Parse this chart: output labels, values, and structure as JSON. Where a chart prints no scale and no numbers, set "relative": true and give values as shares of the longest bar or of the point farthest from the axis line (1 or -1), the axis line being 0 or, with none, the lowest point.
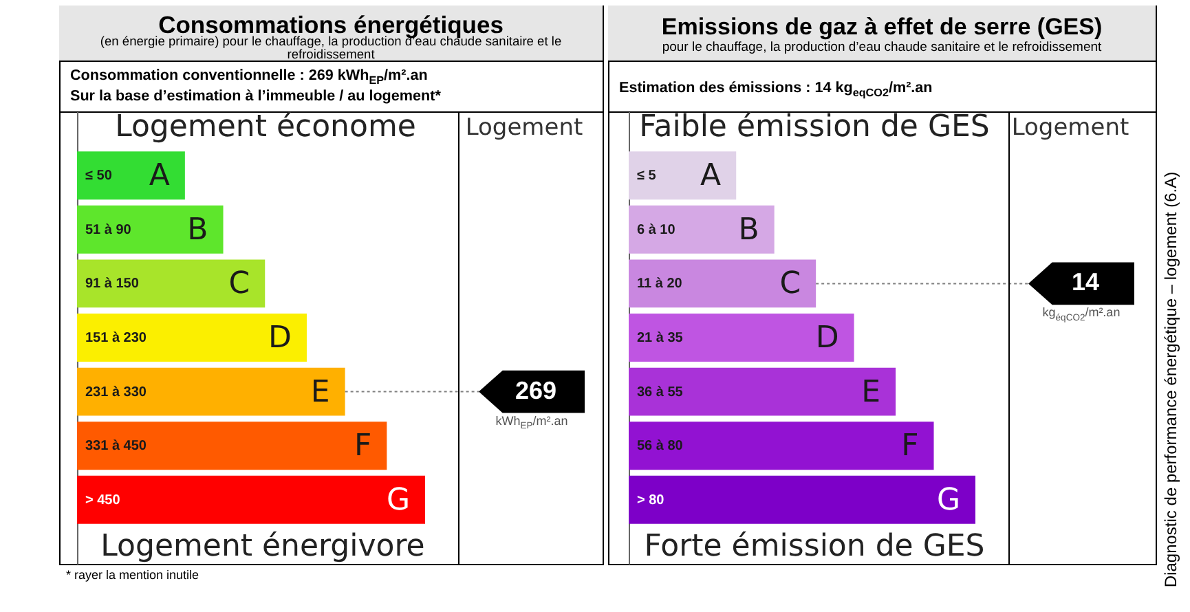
{
  "chart_data": [
    {
      "type": "bar",
      "orientation": "horizontal",
      "relative": true,
      "title": "Consommations énergétiques",
      "subtitle": "(en énergie primaire) pour le chauffage, la production d’eau chaude sanitaire et le refroidissement",
      "categories": [
        "≤ 50",
        "51 à 90",
        "91 à 150",
        "151 à 230",
        "231 à 330",
        "331 à 450",
        "> 450"
      ],
      "values": [
        0.31,
        0.42,
        0.54,
        0.66,
        0.77,
        0.89,
        1
      ],
      "colors": [
        "#33dd33",
        "#5ee62c",
        "#a8e42a",
        "#fbef00",
        "#ffb000",
        "#ff5a00",
        "#ff0000"
      ],
      "ref_lines": [
        {
          "axis": "y",
          "value": "231 à 330",
          "label": "269",
          "color": "#808080",
          "line_style": "dotted"
        }
      ],
      "annotations": [
        "Consommation conventionnelle : 269 kWh$_{EP}$/m².an",
        "Sur la base d’estimation à l’immeuble / au logement*",
        "Logement économe",
        "Logement",
        "Logement énergivore",
        {
          "text": "A",
          "x": 0.31,
          "y": "≤ 50"
        },
        {
          "text": "B",
          "x": 0.42,
          "y": "51 à 90"
        },
        {
          "text": "C",
          "x": 0.54,
          "y": "91 à 150"
        },
        {
          "text": "D",
          "x": 0.66,
          "y": "151 à 230"
        },
        {
          "text": "E",
          "x": 0.77,
          "y": "231 à 330"
        },
        {
          "text": "F",
          "x": 0.89,
          "y": "331 à 450"
        },
        {
          "text": "G",
          "x": 1,
          "y": "> 450"
        },
        "kWh$_{EP}$/m².an",
        "* rayer la mention inutile"
      ]
    },
    {
      "type": "bar",
      "orientation": "horizontal",
      "relative": true,
      "title": "Emissions de gaz à effet de serre (GES)",
      "subtitle": "pour le chauffage, la production d’eau chaude sanitaire et le refroidissement",
      "categories": [
        "≤ 5",
        "6 à 10",
        "11 à 20",
        "21 à 35",
        "36 à 55",
        "56 à 80",
        "> 80"
      ],
      "values": [
        0.31,
        0.42,
        0.54,
        0.65,
        0.77,
        0.88,
        1
      ],
      "colors": [
        "#e0d2e8",
        "#d5a8e5",
        "#c987e0",
        "#bf55e2",
        "#a932d8",
        "#9212d2",
        "#7d00c8"
      ],
      "ref_lines": [
        {
          "axis": "y",
          "value": "11 à 20",
          "label": "14",
          "color": "#808080",
          "line_style": "dotted"
        }
      ],
      "annotations": [
        "Estimation des émissions : 14 kg$_{eqCO2}$/m².an",
        "Faible émission de GES",
        "Logement",
        "Forte émission de GES",
        {
          "text": "A",
          "x": 0.31,
          "y": "≤ 5"
        },
        {
          "text": "B",
          "x": 0.42,
          "y": "6 à 10"
        },
        {
          "text": "C",
          "x": 0.54,
          "y": "11 à 20"
        },
        {
          "text": "D",
          "x": 0.65,
          "y": "21 à 35"
        },
        {
          "text": "E",
          "x": 0.77,
          "y": "36 à 55"
        },
        {
          "text": "F",
          "x": 0.88,
          "y": "56 à 80"
        },
        {
          "text": "G",
          "x": 1,
          "y": "> 80"
        },
        "kg$_{éqCO2}$/m².an",
        "Diagnostic de performance énergétique – logement (6.A)"
      ]
    }
  ]
}
